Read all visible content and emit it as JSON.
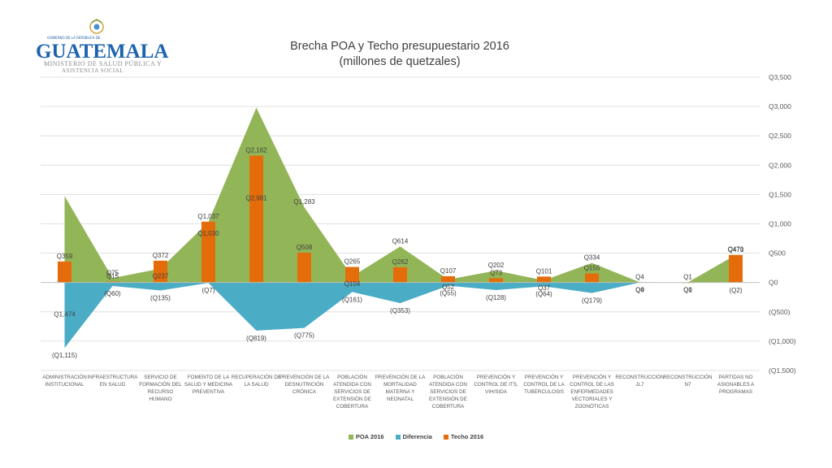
{
  "logo": {
    "top": "GOBIERNO DE LA REPÚBLICA DE",
    "word": "GUATEMALA",
    "sub1": "MINISTERIO DE SALUD PÚBLICA Y",
    "sub2": "ASISTENCIA SOCIAL",
    "colors": {
      "blue": "#1d63ad",
      "gray": "#8a8a8a",
      "emblem": "#c8a23a"
    }
  },
  "chart_data": {
    "type": "area",
    "title": "Brecha POA y Techo presupuestario 2016",
    "subtitle": "(millones de quetzales)",
    "yaxis": {
      "min": -1500,
      "max": 3500,
      "step": 500,
      "tick_labels": [
        "Q3,500",
        "Q3,000",
        "Q2,500",
        "Q2,000",
        "Q1,500",
        "Q1,000",
        "Q500",
        "Q0",
        "(Q500)",
        "(Q1,000)",
        "(Q1,500)"
      ],
      "position": "right"
    },
    "grid": true,
    "legend_position": "bottom",
    "categories": [
      [
        "ADMINISTRACIÓN",
        "INSTITUCIONAL"
      ],
      [
        "INFRAESTRUCTURA",
        "EN SALUD"
      ],
      [
        "SERVICIO DE",
        "FORMACIÓN DEL",
        "RECURSO",
        "HUMANO"
      ],
      [
        "FOMENTO DE LA",
        "SALUD Y MEDICINA",
        "PREVENTIVA"
      ],
      [
        "RECUPERACIÓN DE",
        "LA SALUD"
      ],
      [
        "PREVENCIÓN DE LA",
        "DESNUTRICIÓN",
        "CRÓNICA"
      ],
      [
        "POBLACIÓN",
        "ATENDIDA CON",
        "SERVICIOS DE",
        "EXTENSIÓN DE",
        "COBERTURA"
      ],
      [
        "PREVENCIÓN DE LA",
        "MORTALIDAD",
        "MATERNA Y",
        "NEONATAL"
      ],
      [
        "POBLACIÓN",
        "ATENDIDA CON",
        "SERVICIOS DE",
        "EXTENSIÓN DE",
        "COBERTURA"
      ],
      [
        "PREVENCIÓN Y",
        "CONTROL DE ITS,",
        "VIH/SIDA"
      ],
      [
        "PREVENCIÓN Y",
        "CONTROL DE LA",
        "TUBERCULOSIS"
      ],
      [
        "PREVENCIÓN Y",
        "CONTROL DE LAS",
        "ENFERMEDADES",
        "VECTORIALES Y",
        "ZOONÓTICAS"
      ],
      [
        "RECONSTRUCCIÓN",
        "JL7"
      ],
      [
        "RECONSTRUCCIÓN",
        "N7"
      ],
      [
        "PARTIDAS NO",
        "ASIGNABLES A",
        "PROGRAMAS"
      ]
    ],
    "series": [
      {
        "name": "POA 2016",
        "kind": "area",
        "color": "#92b557",
        "values": [
          1474,
          75,
          237,
          1030,
          2981,
          1283,
          104,
          614,
          52,
          202,
          37,
          334,
          4,
          1,
          471
        ],
        "labels": [
          "Q1,474",
          "Q75",
          "Q237",
          "Q1,030",
          "Q2,981",
          "Q1,283",
          "Q104",
          "Q614",
          "Q52",
          "Q202",
          "Q37",
          "Q334",
          "Q4",
          "Q1",
          "Q471"
        ]
      },
      {
        "name": "Diferencia",
        "kind": "area",
        "color": "#4bacc6",
        "values": [
          -1115,
          -60,
          -135,
          -7,
          -819,
          -775,
          -161,
          -353,
          -55,
          -128,
          -64,
          -179,
          0,
          0,
          -2
        ],
        "labels": [
          "(Q1,115)",
          "(Q60)",
          "(Q135)",
          "(Q7)",
          "(Q819)",
          "(Q775)",
          "(Q161)",
          "(Q353)",
          "(Q55)",
          "(Q128)",
          "(Q64)",
          "(Q179)",
          "Q0",
          "Q0",
          "(Q2)"
        ]
      },
      {
        "name": "Techo 2016",
        "kind": "bar",
        "color": "#e46c0a",
        "values": [
          359,
          15,
          372,
          1037,
          2162,
          508,
          265,
          262,
          107,
          73,
          101,
          155,
          4,
          1,
          470
        ],
        "labels": [
          "Q359",
          "Q15",
          "Q372",
          "Q1,037",
          "Q2,162",
          "Q508",
          "Q265",
          "Q262",
          "Q107",
          "Q73",
          "Q101",
          "Q155",
          "Q4",
          "Q1",
          "Q470"
        ]
      }
    ]
  }
}
